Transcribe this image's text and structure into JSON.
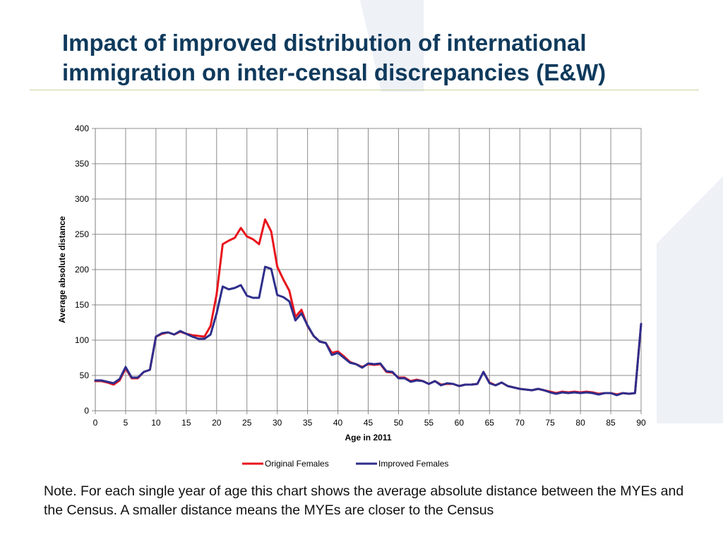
{
  "title": "Impact of improved distribution of international immigration on inter-censal discrepancies (E&W)",
  "note": "Note. For each single year of age this chart shows the average absolute distance between the MYEs and the Census. A smaller distance means the MYEs are closer to the Census",
  "chart_data": {
    "type": "line",
    "title": "",
    "xlabel": "Age in 2011",
    "ylabel": "Average absolute distance",
    "xlim": [
      0,
      90
    ],
    "ylim": [
      0,
      400
    ],
    "x_ticks": [
      0,
      5,
      10,
      15,
      20,
      25,
      30,
      35,
      40,
      45,
      50,
      55,
      60,
      65,
      70,
      75,
      80,
      85,
      90
    ],
    "y_ticks": [
      0,
      50,
      100,
      150,
      200,
      250,
      300,
      350,
      400
    ],
    "x_tick_labels": [
      "0",
      "5",
      "10",
      "15",
      "20",
      "25",
      "30",
      "35",
      "40",
      "45",
      "50",
      "55",
      "60",
      "65",
      "70",
      "75",
      "80",
      "85",
      "90"
    ],
    "y_tick_labels": [
      "0",
      "50",
      "100",
      "150",
      "200",
      "250",
      "300",
      "350",
      "400"
    ],
    "grid": true,
    "legend_position": "bottom",
    "x": [
      0,
      1,
      2,
      3,
      4,
      5,
      6,
      7,
      8,
      9,
      10,
      11,
      12,
      13,
      14,
      15,
      16,
      17,
      18,
      19,
      20,
      21,
      22,
      23,
      24,
      25,
      26,
      27,
      28,
      29,
      30,
      31,
      32,
      33,
      34,
      35,
      36,
      37,
      38,
      39,
      40,
      41,
      42,
      43,
      44,
      45,
      46,
      47,
      48,
      49,
      50,
      51,
      52,
      53,
      54,
      55,
      56,
      57,
      58,
      59,
      60,
      61,
      62,
      63,
      64,
      65,
      66,
      67,
      68,
      69,
      70,
      71,
      72,
      73,
      74,
      75,
      76,
      77,
      78,
      79,
      80,
      81,
      82,
      83,
      84,
      85,
      86,
      87,
      88,
      89,
      90
    ],
    "series": [
      {
        "name": "Original Females",
        "color": "#e8141c",
        "values": [
          42,
          42,
          40,
          37,
          43,
          60,
          46,
          46,
          55,
          58,
          105,
          109,
          111,
          108,
          112,
          109,
          107,
          106,
          105,
          120,
          165,
          236,
          241,
          245,
          259,
          247,
          243,
          236,
          271,
          254,
          204,
          186,
          170,
          133,
          143,
          120,
          106,
          98,
          96,
          82,
          84,
          77,
          69,
          66,
          62,
          66,
          65,
          66,
          55,
          54,
          47,
          47,
          42,
          44,
          42,
          38,
          42,
          37,
          38,
          38,
          35,
          37,
          37,
          38,
          55,
          40,
          36,
          40,
          35,
          33,
          31,
          30,
          29,
          31,
          29,
          27,
          25,
          27,
          26,
          27,
          26,
          27,
          26,
          24,
          25,
          25,
          23,
          25,
          24,
          25,
          123
        ]
      },
      {
        "name": "Improved Females",
        "color": "#2e2e8c",
        "values": [
          43,
          43,
          41,
          39,
          45,
          62,
          47,
          47,
          55,
          58,
          105,
          110,
          111,
          108,
          113,
          109,
          105,
          102,
          102,
          108,
          138,
          176,
          172,
          174,
          178,
          163,
          160,
          160,
          204,
          201,
          164,
          161,
          155,
          128,
          138,
          121,
          106,
          98,
          96,
          79,
          82,
          75,
          68,
          66,
          61,
          67,
          66,
          67,
          56,
          55,
          46,
          46,
          41,
          43,
          42,
          38,
          42,
          36,
          39,
          38,
          35,
          37,
          37,
          38,
          55,
          39,
          36,
          40,
          35,
          33,
          31,
          30,
          29,
          31,
          29,
          26,
          24,
          26,
          25,
          26,
          25,
          26,
          25,
          23,
          25,
          25,
          22,
          25,
          24,
          25,
          123
        ]
      }
    ]
  }
}
